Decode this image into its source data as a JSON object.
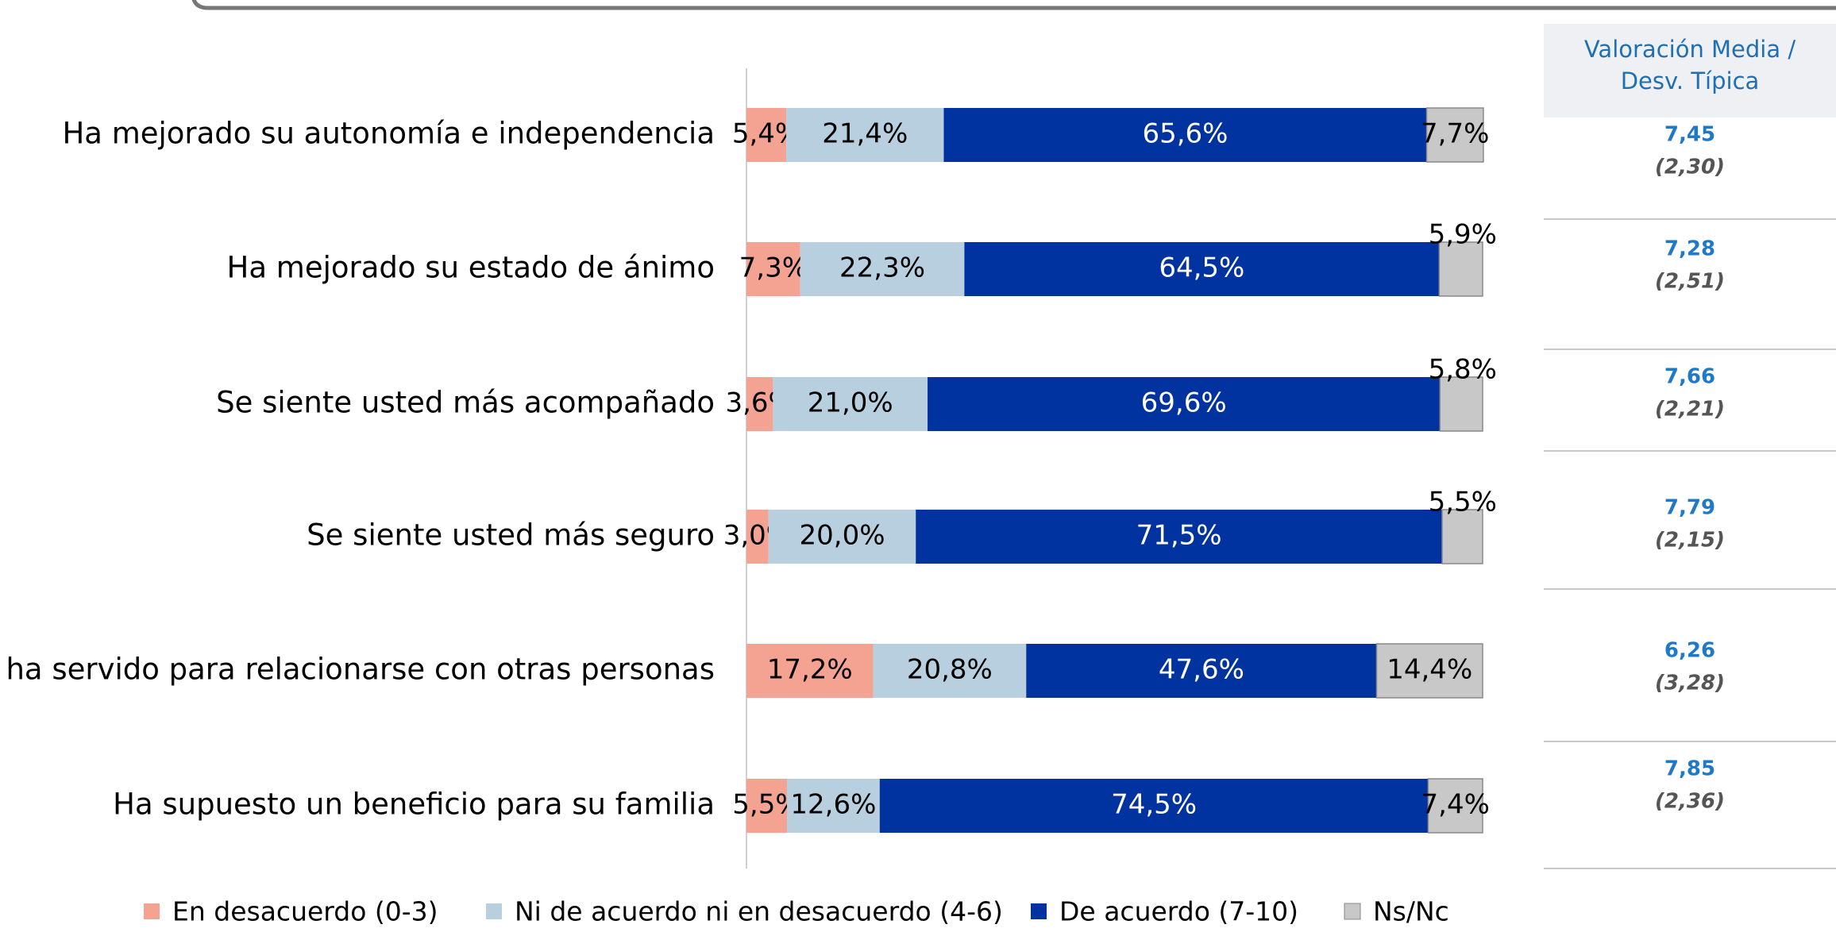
{
  "chart_data": {
    "type": "bar",
    "orientation": "horizontal",
    "stacked": true,
    "categories": [
      "Ha mejorado su autonomía e independencia",
      "Ha mejorado su estado de ánimo",
      "Se siente usted más acompañado",
      "Se siente usted más seguro",
      "Le ha servido para relacionarse con otras personas",
      "Ha supuesto un beneficio para su familia"
    ],
    "xlim": [
      0,
      100
    ],
    "legend": "bottom",
    "series": [
      {
        "name": "En desacuerdo (0-3)",
        "color": "#f4a292",
        "values": [
          5.4,
          7.3,
          3.6,
          3.0,
          17.2,
          5.5
        ],
        "value_labels": [
          "5,4%",
          "7,3%",
          "3,6%",
          "3,0%",
          "17,2%",
          "5,5%"
        ]
      },
      {
        "name": "Ni de acuerdo ni en desacuerdo (4-6)",
        "color": "#b8cfe0",
        "values": [
          21.4,
          22.3,
          21.0,
          20.0,
          20.8,
          12.6
        ],
        "value_labels": [
          "21,4%",
          "22,3%",
          "21,0%",
          "20,0%",
          "20,8%",
          "12,6%"
        ]
      },
      {
        "name": "De acuerdo (7-10)",
        "color": "#0033a0",
        "values": [
          65.6,
          64.5,
          69.6,
          71.5,
          47.6,
          74.5
        ],
        "value_labels": [
          "65,6%",
          "64,5%",
          "69,6%",
          "71,5%",
          "47,6%",
          "74,5%"
        ]
      },
      {
        "name": "Ns/Nc",
        "color": "#c8c8c8",
        "values": [
          7.7,
          5.9,
          5.8,
          5.5,
          14.4,
          7.4
        ],
        "value_labels": [
          "7,7%",
          "5,9%",
          "5,8%",
          "5,5%",
          "14,4%",
          "7,4%"
        ]
      }
    ]
  },
  "side_table": {
    "header": [
      "Valoración Media /",
      "Desv. Típica"
    ],
    "rows": [
      {
        "mean": "7,45",
        "sd": "(2,30)"
      },
      {
        "mean": "7,28",
        "sd": "(2,51)"
      },
      {
        "mean": "7,66",
        "sd": "(2,21)"
      },
      {
        "mean": "7,79",
        "sd": "(2,15)"
      },
      {
        "mean": "6,26",
        "sd": "(3,28)"
      },
      {
        "mean": "7,85",
        "sd": "(2,36)"
      }
    ]
  }
}
